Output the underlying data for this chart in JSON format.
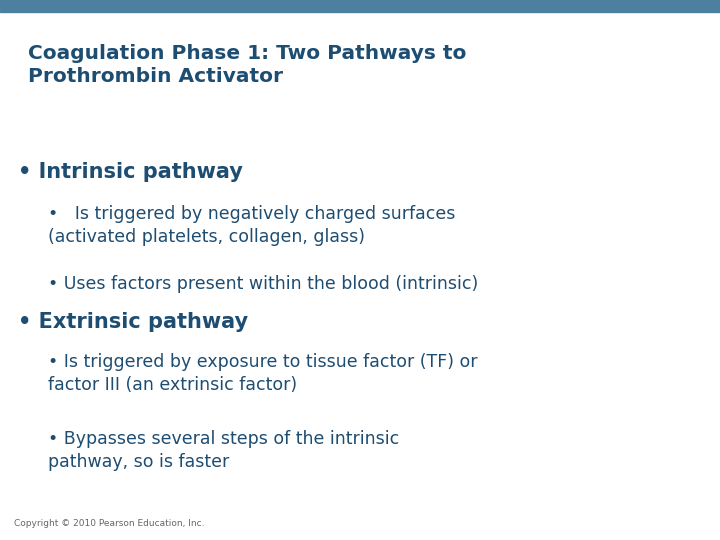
{
  "title_line1": "Coagulation Phase 1: Two Pathways to",
  "title_line2": "Prothrombin Activator",
  "title_color": "#1e4d72",
  "background_color": "#ffffff",
  "top_bar_color": "#4d7fa0",
  "copyright": "Copyright © 2010 Pearson Education, Inc.",
  "copyright_color": "#666666",
  "copyright_fontsize": 6.5,
  "title_fontsize": 14.5,
  "bullet1_text": "Intrinsic pathway",
  "bullet1_fontsize": 15,
  "bullet2_text": "Is triggered by negatively charged surfaces\n(activated platelets, collagen, glass)",
  "bullet2_fontsize": 12.5,
  "bullet3_text": "Uses factors present within the blood (intrinsic)",
  "bullet3_fontsize": 12.5,
  "bullet4_text": "Extrinsic pathway",
  "bullet4_fontsize": 15,
  "bullet5_text": "Is triggered by exposure to tissue factor (TF) or\nfactor III (an extrinsic factor)",
  "bullet5_fontsize": 12.5,
  "bullet6_text": "Bypasses several steps of the intrinsic\npathway, so is faster",
  "bullet6_fontsize": 12.5,
  "text_color": "#1e4d72"
}
